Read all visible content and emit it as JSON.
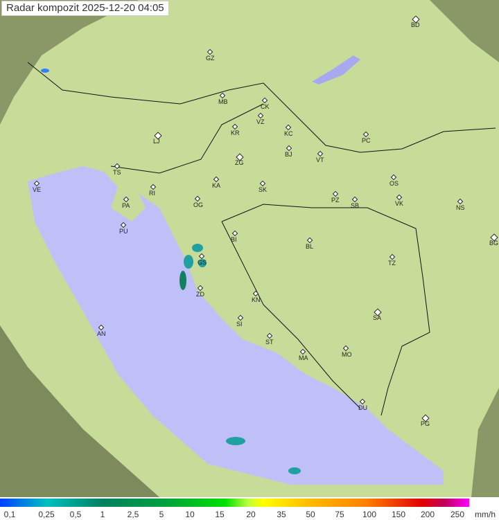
{
  "title": "Radar kompozit  2025-12-20   04:05",
  "colors": {
    "land": "#c8dc9a",
    "sea": "#bfc0f8",
    "outside": "#7f8f60",
    "accent_rain": "#20a0a0"
  },
  "legend": {
    "unit": "mm/h",
    "labels": [
      "0,1",
      "0,25",
      "0,5",
      "1",
      "2,5",
      "5",
      "10",
      "15",
      "20",
      "35",
      "50",
      "75",
      "100",
      "150",
      "200",
      "250"
    ]
  },
  "cities": [
    "GZ",
    "BD",
    "MB",
    "CK",
    "VZ",
    "KR",
    "KC",
    "PC",
    "LJ",
    "ZG",
    "BJ",
    "VT",
    "TS",
    "VE",
    "RI",
    "KA",
    "SK",
    "OS",
    "PA",
    "OG",
    "PZ",
    "SB",
    "VK",
    "NS",
    "PU",
    "BI",
    "BL",
    "BG",
    "GS",
    "TZ",
    "ZD",
    "KN",
    "SA",
    "SI",
    "AN",
    "ST",
    "MA",
    "MO",
    "DU",
    "PG"
  ]
}
